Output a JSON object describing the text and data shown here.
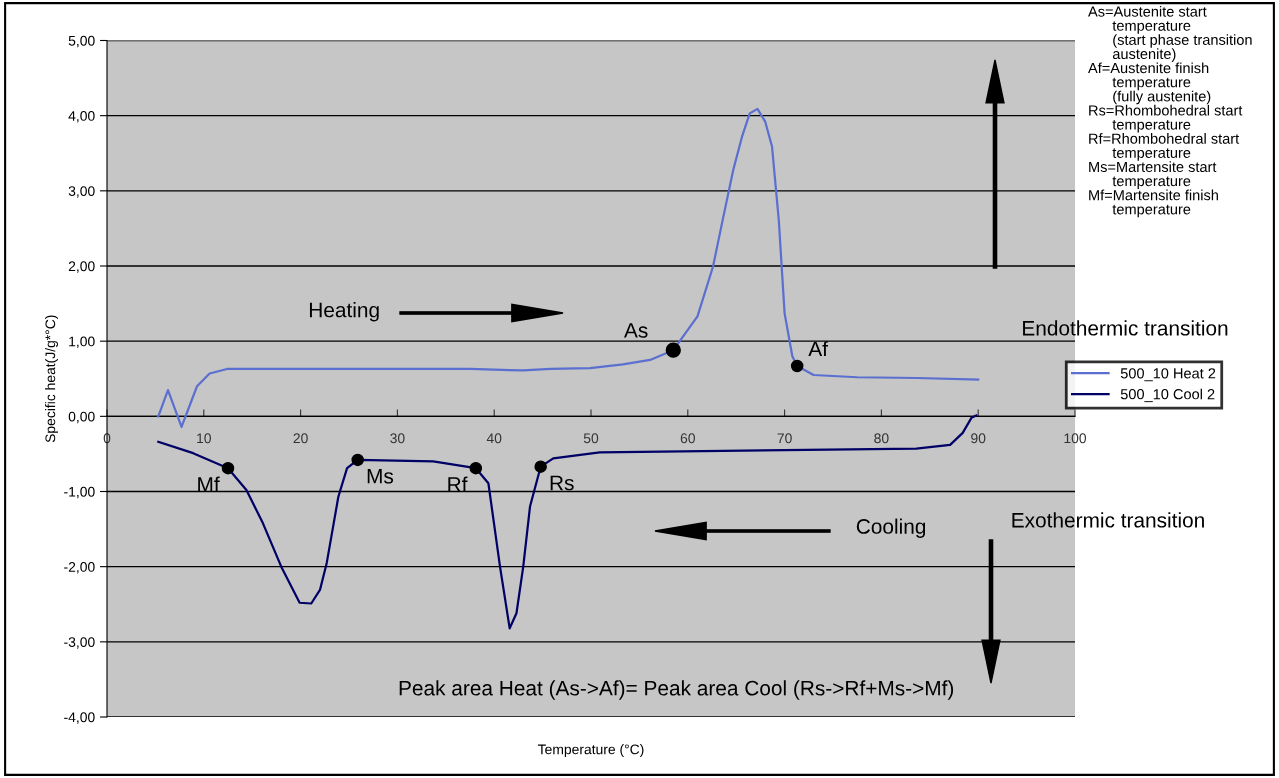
{
  "chart_data": {
    "type": "line",
    "xlabel": "Temperature (°C)",
    "ylabel": "Specific heat(J/g*°C)",
    "xlim": [
      0,
      100
    ],
    "xticks": [
      0,
      10,
      20,
      30,
      40,
      50,
      60,
      70,
      80,
      90,
      100
    ],
    "ylim": [
      -4,
      5
    ],
    "yticks": [
      {
        "value": -4,
        "label": "-4,00"
      },
      {
        "value": -3,
        "label": "-3,00"
      },
      {
        "value": -2,
        "label": "-2,00"
      },
      {
        "value": -1,
        "label": "-1,00"
      },
      {
        "value": 0,
        "label": "0,00"
      },
      {
        "value": 1,
        "label": "1,00"
      },
      {
        "value": 2,
        "label": "2,00"
      },
      {
        "value": 3,
        "label": "3,00"
      },
      {
        "value": 4,
        "label": "4,00"
      },
      {
        "value": 5,
        "label": "5,00"
      }
    ],
    "grid": "y",
    "legend": "right",
    "marker": "none",
    "line_style": "solid",
    "series": [
      {
        "name": "500_10 Heat 2",
        "color": "#5b6fd0",
        "x": [
          5.3,
          6.3,
          7.7,
          9.3,
          10.6,
          12.4,
          37.5,
          43.0,
          45.8,
          49.9,
          53.3,
          56.1,
          58.5,
          61.0,
          62.6,
          63.6,
          64.7,
          65.6,
          66.4,
          67.2,
          68.0,
          68.7,
          69.4,
          70.0,
          70.8,
          71.3,
          73.0,
          77.5,
          83.7,
          90.0
        ],
        "values": [
          0.0,
          0.35,
          -0.14,
          0.4,
          0.57,
          0.63,
          0.63,
          0.61,
          0.63,
          0.64,
          0.69,
          0.75,
          0.88,
          1.33,
          1.99,
          2.61,
          3.28,
          3.72,
          4.03,
          4.09,
          3.92,
          3.59,
          2.61,
          1.37,
          0.8,
          0.67,
          0.55,
          0.52,
          0.51,
          0.49
        ]
      },
      {
        "name": "500_10 Cool 2",
        "color": "#000066",
        "x": [
          5.3,
          8.9,
          12.5,
          14.4,
          16.1,
          18.0,
          19.9,
          21.1,
          22.0,
          22.7,
          23.9,
          24.8,
          25.9,
          33.7,
          38.1,
          39.4,
          40.6,
          41.6,
          42.3,
          43.0,
          43.7,
          44.8,
          46.1,
          50.9,
          70.0,
          83.6,
          87.1,
          88.4,
          89.3,
          89.8
        ],
        "values": [
          -0.34,
          -0.49,
          -0.69,
          -0.98,
          -1.42,
          -2.0,
          -2.48,
          -2.49,
          -2.31,
          -1.95,
          -1.07,
          -0.69,
          -0.58,
          -0.6,
          -0.69,
          -0.89,
          -2.0,
          -2.82,
          -2.62,
          -2.0,
          -1.2,
          -0.67,
          -0.56,
          -0.48,
          -0.45,
          -0.43,
          -0.38,
          -0.22,
          -0.02,
          0.01
        ]
      }
    ],
    "annotations": [
      {
        "text": "As",
        "x": 58.5,
        "y": 0.88
      },
      {
        "text": "Af",
        "x": 71.3,
        "y": 0.67
      },
      {
        "text": "Mf",
        "x": 12.5,
        "y": -0.69
      },
      {
        "text": "Ms",
        "x": 25.9,
        "y": -0.58
      },
      {
        "text": "Rf",
        "x": 38.1,
        "y": -0.69
      },
      {
        "text": "Rs",
        "x": 44.8,
        "y": -0.67
      },
      "Heating",
      "Cooling",
      "Endothermic transition",
      "Exothermic transition",
      "Peak area Heat (As->Af)= Peak area Cool (Rs->Rf+Ms->Mf)",
      "As=Austenite start\n      temperature\n      (start phase transition\n      austenite)\nAf=Austenite finish\n      temperature\n      (fully austenite)\nRs=Rhombohedral start\n      temperature\nRf=Rhombohedral start\n      temperature\nMs=Martensite start\n      temperature\nMf=Martensite finish\n      temperature"
    ]
  }
}
